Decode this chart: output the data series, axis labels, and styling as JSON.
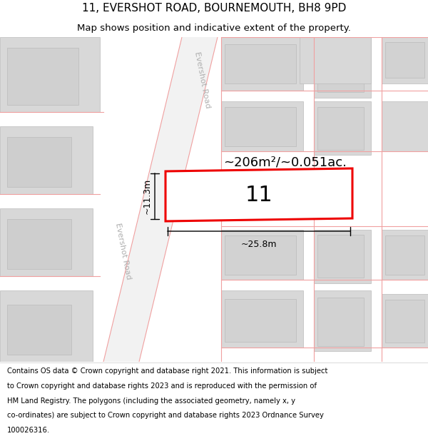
{
  "title_line1": "11, EVERSHOT ROAD, BOURNEMOUTH, BH8 9PD",
  "title_line2": "Map shows position and indicative extent of the property.",
  "area_label": "~206m²/~0.051ac.",
  "width_label": "~25.8m",
  "height_label": "~11.3m",
  "house_number": "11",
  "map_bg": "#e8e8e8",
  "road_color": "#f2f2f2",
  "building_fill": "#d8d8d8",
  "building_edge": "#bbbbbb",
  "highlight_color": "#ee0000",
  "road_line_color": "#f0a0a0",
  "road_label": "Evershot Road",
  "title_fontsize": 11,
  "subtitle_fontsize": 9.5,
  "footer_fontsize": 7.2,
  "footer_lines": [
    "Contains OS data © Crown copyright and database right 2021. This information is subject",
    "to Crown copyright and database rights 2023 and is reproduced with the permission of",
    "HM Land Registry. The polygons (including the associated geometry, namely x, y",
    "co-ordinates) are subject to Crown copyright and database rights 2023 Ordnance Survey",
    "100026316."
  ]
}
